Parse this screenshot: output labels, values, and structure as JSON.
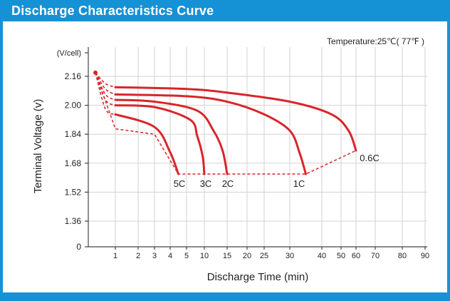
{
  "header": {
    "title": "Discharge Characteristics Curve"
  },
  "chart_data": {
    "type": "line",
    "title": "Discharge Characteristics Curve",
    "annotation": "Temperature:25℃( 77℉ )",
    "ylabel": "Terminal Voltage  (v)",
    "yunit": "(V/cell)",
    "xlabel": "Discharge  Time (min)",
    "x_scale": "nonlinear",
    "x_ticks": [
      "1",
      "2",
      "3",
      "4",
      "5",
      "10",
      "15",
      "20",
      "25",
      "30",
      "40",
      "50",
      "60",
      "70",
      "80",
      "90"
    ],
    "y_ticks": [
      "2.16",
      "2.00",
      "1.84",
      "1.68",
      "1.52",
      "1.36",
      "0"
    ],
    "ylim": [
      0,
      2.24
    ],
    "grid": true,
    "colors": {
      "curve": "#d7262b",
      "accent": "#1591d6"
    },
    "series": [
      {
        "name": "0.6C",
        "x": [
          0,
          0.5,
          1,
          5,
          15,
          30,
          45,
          55,
          60
        ],
        "y": [
          2.18,
          2.12,
          2.1,
          2.09,
          2.07,
          2.02,
          1.95,
          1.86,
          1.75
        ]
      },
      {
        "name": "1C",
        "x": [
          0,
          0.5,
          1,
          5,
          15,
          25,
          30,
          33,
          35
        ],
        "y": [
          2.18,
          2.09,
          2.06,
          2.05,
          2.02,
          1.95,
          1.86,
          1.74,
          1.62
        ]
      },
      {
        "name": "2C",
        "x": [
          0,
          0.5,
          1,
          3,
          8,
          12,
          14,
          15
        ],
        "y": [
          2.18,
          2.06,
          2.03,
          2.02,
          1.97,
          1.86,
          1.75,
          1.62
        ]
      },
      {
        "name": "3C",
        "x": [
          0,
          0.5,
          1,
          3,
          6,
          8,
          9.5,
          10
        ],
        "y": [
          2.18,
          2.03,
          2.0,
          1.99,
          1.92,
          1.83,
          1.72,
          1.62
        ]
      },
      {
        "name": "5C",
        "x": [
          0,
          0.5,
          1,
          3,
          4,
          4.5
        ],
        "y": [
          2.18,
          1.98,
          1.95,
          1.88,
          1.74,
          1.62
        ]
      }
    ],
    "end_voltage_path": {
      "x": [
        0,
        1,
        3,
        4.5,
        10,
        15,
        35,
        60
      ],
      "y": [
        2.18,
        1.87,
        1.84,
        1.62,
        1.62,
        1.62,
        1.62,
        1.75
      ]
    },
    "end_labels": [
      "5C",
      "3C",
      "2C",
      "1C",
      "0.6C"
    ]
  }
}
